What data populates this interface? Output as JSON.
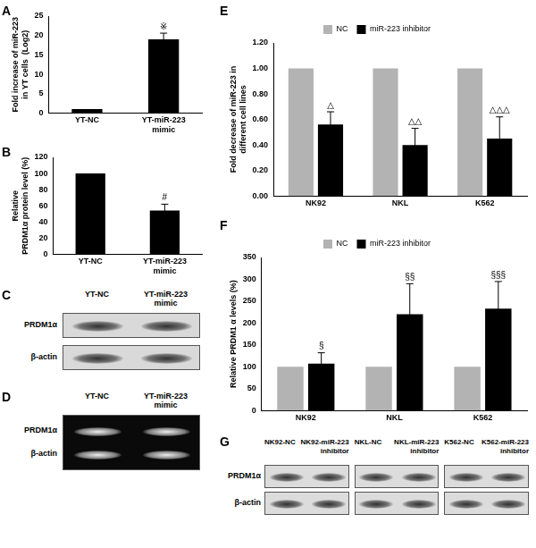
{
  "chart_data": [
    {
      "type": "bar",
      "title": "A",
      "categories": [
        "YT-NC",
        "YT-miR-223 mimic"
      ],
      "values": [
        1,
        19
      ],
      "errors": [
        0,
        1.6
      ],
      "color": "#000000",
      "y_label": [
        "Fold increase of miR-223",
        "in YT cells  (Log2)"
      ],
      "ylim": [
        0,
        25
      ],
      "yticks": [
        0,
        5,
        10,
        15,
        20,
        25
      ],
      "grid": false,
      "annotations": [
        {
          "category": "YT-miR-223 mimic",
          "text": "※"
        }
      ]
    },
    {
      "type": "bar",
      "title": "B",
      "categories": [
        "YT-NC",
        "YT-miR-223 mimic"
      ],
      "values": [
        100,
        54
      ],
      "errors": [
        0,
        8
      ],
      "color": "#000000",
      "y_label": [
        "Relative",
        "PRDM1α protein level (%)"
      ],
      "ylim": [
        0,
        120
      ],
      "yticks": [
        0,
        20,
        40,
        60,
        80,
        100,
        120
      ],
      "grid": false,
      "annotations": [
        {
          "category": "YT-miR-223 mimic",
          "text": "#"
        }
      ]
    },
    {
      "type": "bar",
      "title": "E",
      "categories": [
        "NK92",
        "NKL",
        "K562"
      ],
      "series": [
        {
          "name": "NC",
          "color": "#b3b3b3",
          "values": [
            1,
            1,
            1
          ]
        },
        {
          "name": "miR-223 inhibitor",
          "color": "#000000",
          "values": [
            0.56,
            0.4,
            0.45
          ],
          "errors": [
            0.1,
            0.13,
            0.17
          ]
        }
      ],
      "y_label": [
        "Fold decrease of miR-223 in",
        "different cell lines"
      ],
      "ylim": [
        0,
        1.2
      ],
      "yticks": [
        {
          "value": 0,
          "label": "0.00"
        },
        {
          "value": 0.2,
          "label": "0.20"
        },
        {
          "value": 0.4,
          "label": "0.40"
        },
        {
          "value": 0.6,
          "label": "0.60"
        },
        {
          "value": 0.8,
          "label": "0.80"
        },
        {
          "value": 1,
          "label": "1.00"
        },
        {
          "value": 1.2,
          "label": "1.20"
        }
      ],
      "grid": false,
      "legend": "top",
      "annotations": [
        {
          "category": "NK92",
          "series": "miR-223 inhibitor",
          "text": "△"
        },
        {
          "category": "NKL",
          "series": "miR-223 inhibitor",
          "text": "△△"
        },
        {
          "category": "K562",
          "series": "miR-223 inhibitor",
          "text": "△△△"
        }
      ]
    },
    {
      "type": "bar",
      "title": "F",
      "categories": [
        "NK92",
        "NKL",
        "K562"
      ],
      "series": [
        {
          "name": "NC",
          "color": "#b3b3b3",
          "values": [
            100,
            100,
            100
          ]
        },
        {
          "name": "miR-223 inhibitor",
          "color": "#000000",
          "values": [
            107,
            220,
            233
          ],
          "errors": [
            25,
            70,
            62
          ]
        }
      ],
      "y_label": [
        "Relative PRDM1 α levels (%)"
      ],
      "ylim": [
        0,
        350
      ],
      "yticks": [
        0,
        50,
        100,
        150,
        200,
        250,
        300,
        350
      ],
      "grid": false,
      "legend": "top",
      "annotations": [
        {
          "category": "NK92",
          "series": "miR-223 inhibitor",
          "text": "§"
        },
        {
          "category": "NKL",
          "series": "miR-223 inhibitor",
          "text": "§§"
        },
        {
          "category": "K562",
          "series": "miR-223 inhibitor",
          "text": "§§§"
        }
      ]
    }
  ],
  "blots": [
    {
      "title": "C",
      "lanes": [
        "YT-NC",
        "YT-miR-223 mimic"
      ],
      "rows": [
        "PRDM1α",
        "β-actin"
      ]
    },
    {
      "title": "D",
      "lanes": [
        "YT-NC",
        "YT-miR-223 mimic"
      ],
      "rows": [
        "PRDM1α",
        "β-actin"
      ]
    },
    {
      "title": "G",
      "rows": [
        "PRDM1α",
        "β-actin"
      ],
      "groups": [
        {
          "lanes": [
            "NK92-NC",
            "NK92-miR-223 inhibitor"
          ]
        },
        {
          "lanes": [
            "NKL-NC",
            "NKL-miR-223 inhibitor"
          ]
        },
        {
          "lanes": [
            "K562-NC",
            "K562-miR-223 inhibitor"
          ]
        }
      ]
    }
  ]
}
